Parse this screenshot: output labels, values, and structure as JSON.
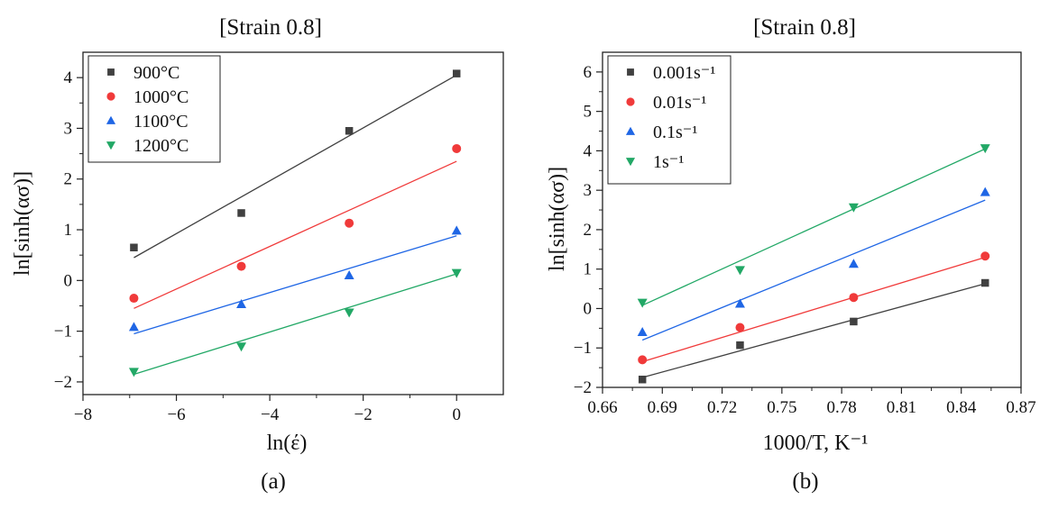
{
  "chart_data": [
    {
      "type": "scatter",
      "panel_label": "(a)",
      "title": "[Strain 0.8]",
      "xlabel": "ln(έ)",
      "ylabel": "ln[sinh(ασ)]",
      "xlim": [
        -8,
        1
      ],
      "ylim": [
        -2.25,
        4.5
      ],
      "x_ticks": [
        -8,
        -6,
        -4,
        -2,
        0
      ],
      "x_tick_labels": [
        "−8",
        "−6",
        "−4",
        "−2",
        "0"
      ],
      "y_ticks": [
        -2,
        -1,
        0,
        1,
        2,
        3,
        4
      ],
      "y_tick_labels": [
        "−2",
        "−1",
        "0",
        "1",
        "2",
        "3",
        "4"
      ],
      "legend_position": "top-left",
      "x": [
        -6.91,
        -4.61,
        -2.3,
        0.0
      ],
      "series": [
        {
          "name": "900°C",
          "color": "#404040",
          "marker": "square",
          "values": [
            0.65,
            1.33,
            2.95,
            4.08
          ],
          "fit": [
            [
              -6.91,
              0.45
            ],
            [
              0.0,
              4.05
            ]
          ]
        },
        {
          "name": "1000°C",
          "color": "#f03a3a",
          "marker": "circle",
          "values": [
            -0.35,
            0.28,
            1.13,
            2.6
          ],
          "fit": [
            [
              -6.91,
              -0.55
            ],
            [
              0.0,
              2.35
            ]
          ]
        },
        {
          "name": "1100°C",
          "color": "#1f66e5",
          "marker": "triangle-up",
          "values": [
            -0.92,
            -0.47,
            0.1,
            0.98
          ],
          "fit": [
            [
              -6.91,
              -1.05
            ],
            [
              0.0,
              0.88
            ]
          ]
        },
        {
          "name": "1200°C",
          "color": "#22a866",
          "marker": "triangle-down",
          "values": [
            -1.8,
            -1.3,
            -0.63,
            0.15
          ],
          "fit": [
            [
              -6.91,
              -1.85
            ],
            [
              0.0,
              0.13
            ]
          ]
        }
      ]
    },
    {
      "type": "scatter",
      "panel_label": "(b)",
      "title": "[Strain 0.8]",
      "xlabel": "1000/T, K⁻¹",
      "ylabel": "ln[sinh(ασ)]",
      "xlim": [
        0.66,
        0.87
      ],
      "ylim": [
        -2,
        6.5
      ],
      "x_ticks": [
        0.66,
        0.69,
        0.72,
        0.75,
        0.78,
        0.81,
        0.84,
        0.87
      ],
      "x_tick_labels": [
        "0.66",
        "0.69",
        "0.72",
        "0.75",
        "0.78",
        "0.81",
        "0.84",
        "0.87"
      ],
      "y_ticks": [
        -2,
        -1,
        0,
        1,
        2,
        3,
        4,
        5,
        6
      ],
      "y_tick_labels": [
        "−2",
        "−1",
        "0",
        "1",
        "2",
        "3",
        "4",
        "5",
        "6"
      ],
      "legend_position": "top-left",
      "x": [
        0.68,
        0.729,
        0.786,
        0.852
      ],
      "series": [
        {
          "name": "0.001s⁻¹",
          "color": "#404040",
          "marker": "square",
          "values": [
            -1.8,
            -0.93,
            -0.33,
            0.65
          ],
          "fit": [
            [
              0.68,
              -1.75
            ],
            [
              0.852,
              0.63
            ]
          ]
        },
        {
          "name": "0.01s⁻¹",
          "color": "#f03a3a",
          "marker": "circle",
          "values": [
            -1.3,
            -0.48,
            0.28,
            1.33
          ],
          "fit": [
            [
              0.68,
              -1.35
            ],
            [
              0.852,
              1.3
            ]
          ]
        },
        {
          "name": "0.1s⁻¹",
          "color": "#1f66e5",
          "marker": "triangle-up",
          "values": [
            -0.6,
            0.12,
            1.13,
            2.95
          ],
          "fit": [
            [
              0.68,
              -0.8
            ],
            [
              0.852,
              2.75
            ]
          ]
        },
        {
          "name": "1s⁻¹",
          "color": "#22a866",
          "marker": "triangle-down",
          "values": [
            0.15,
            0.98,
            2.57,
            4.07
          ],
          "fit": [
            [
              0.68,
              0.08
            ],
            [
              0.852,
              4.05
            ]
          ]
        }
      ]
    }
  ]
}
